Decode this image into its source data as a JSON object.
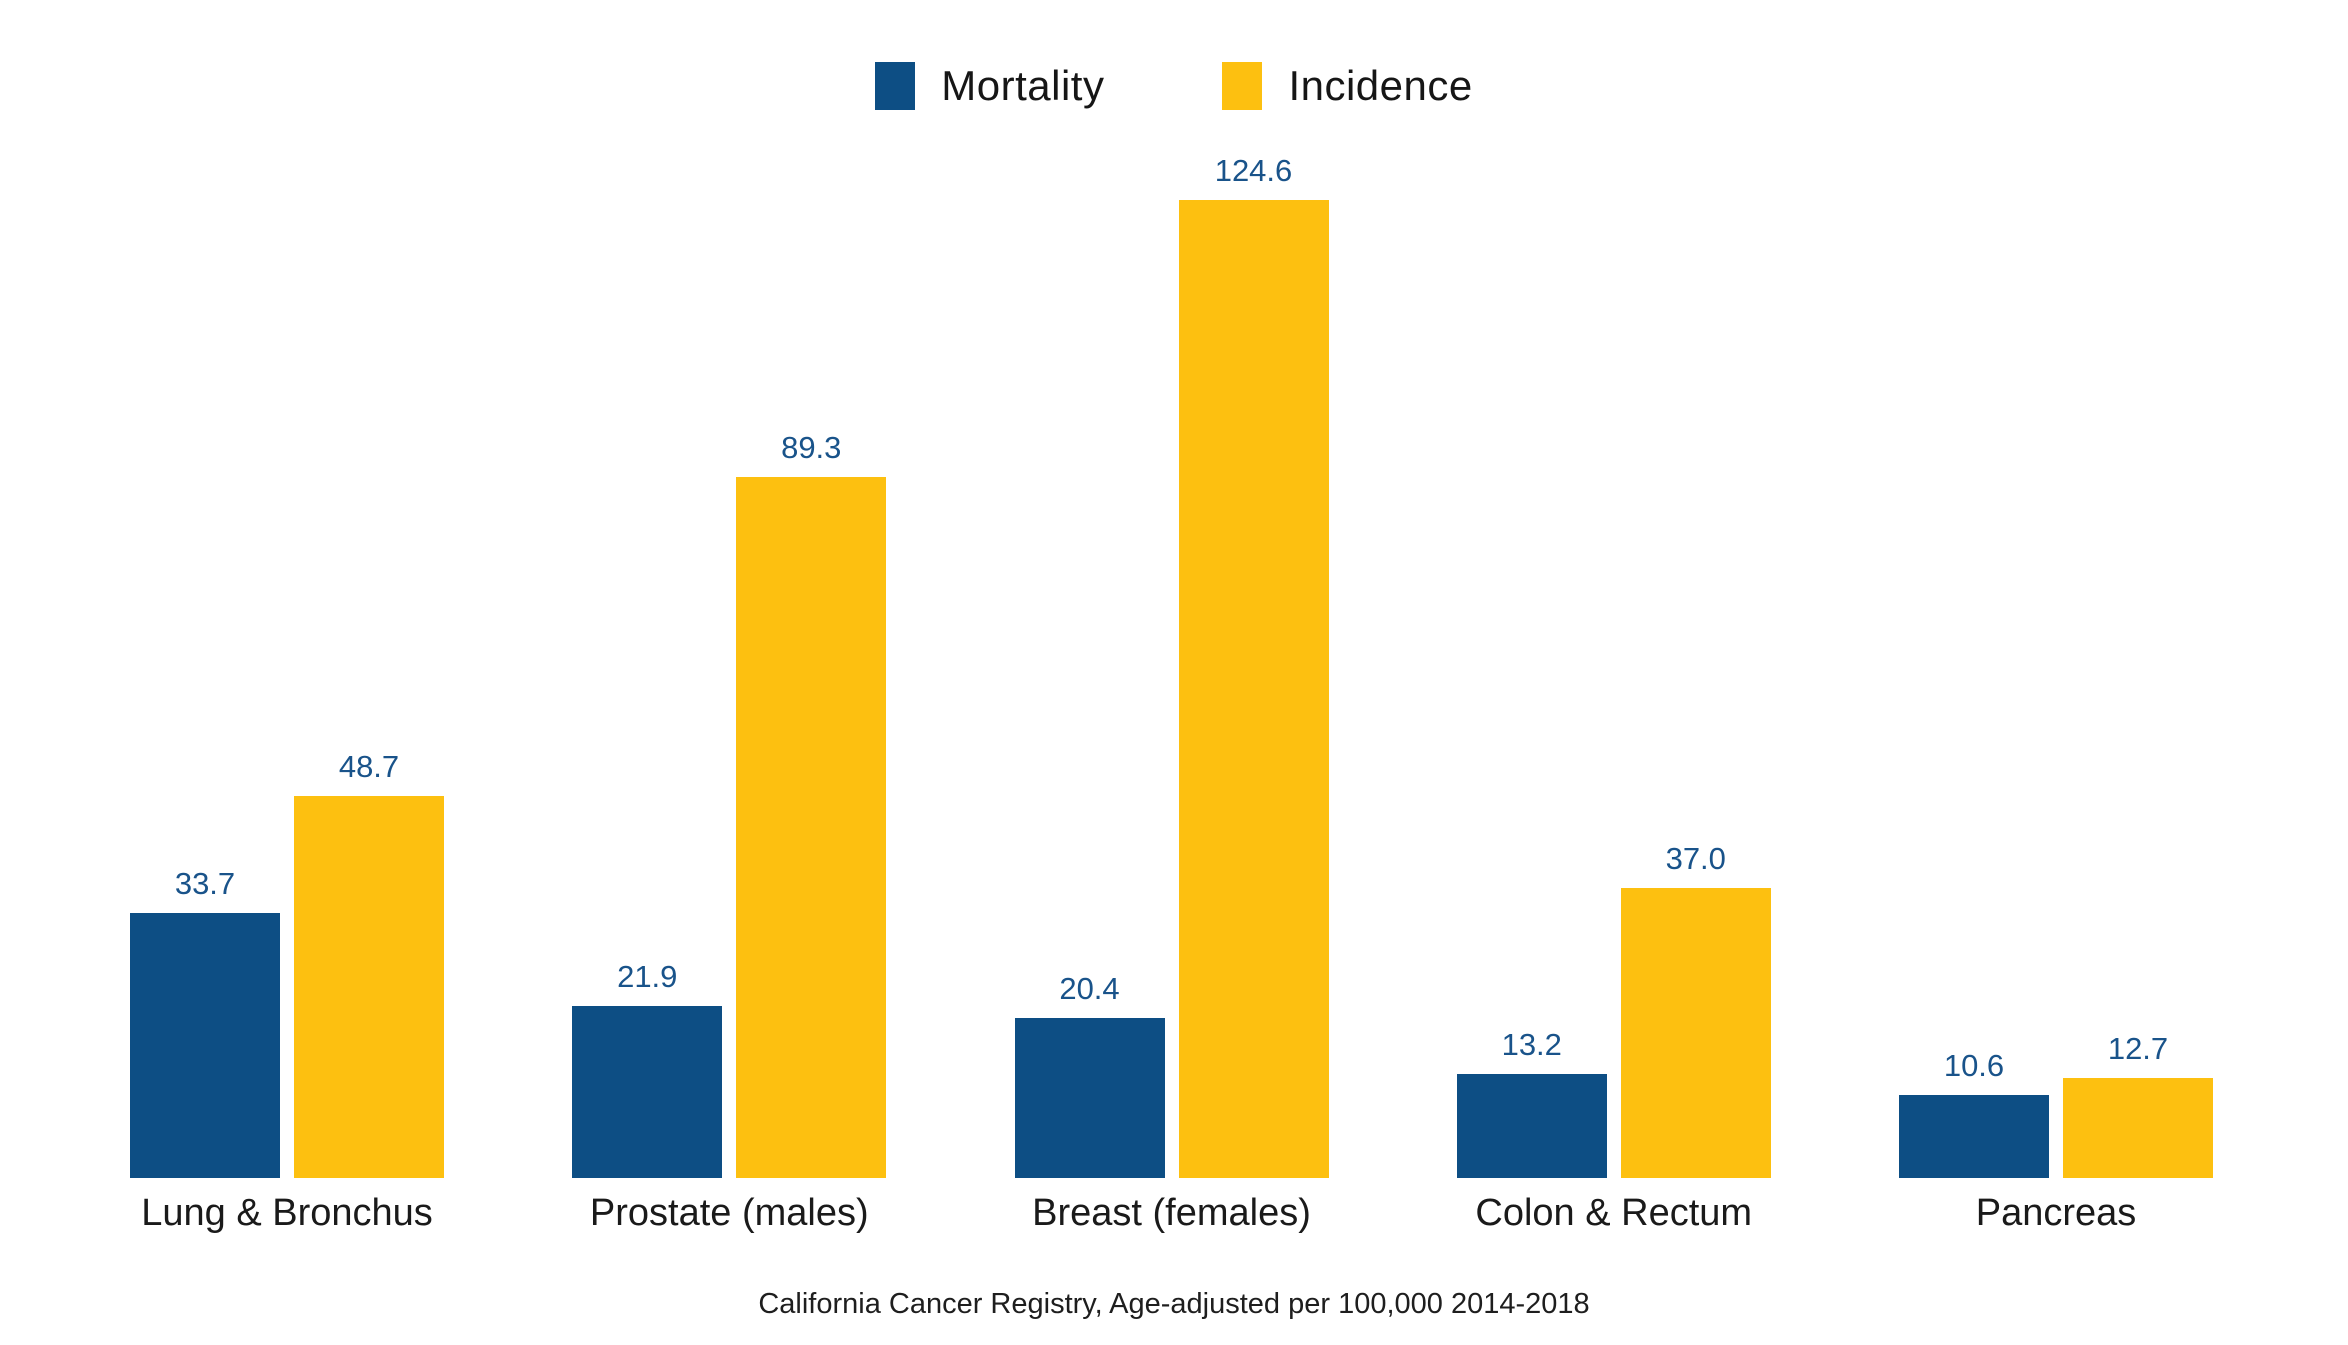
{
  "legend": {
    "items": [
      {
        "label": "Mortality",
        "color": "#0D4E84"
      },
      {
        "label": "Incidence",
        "color": "#FDC010"
      }
    ]
  },
  "caption": "California Cancer Registry, Age-adjusted per 100,000 2014-2018",
  "colors": {
    "mortality_bar": "#0D4E84",
    "incidence_bar": "#FDC010",
    "value_label": "#19538A",
    "text": "#1a1a1a",
    "background": "#ffffff"
  },
  "chart_data": {
    "type": "bar",
    "categories": [
      "Lung & Bronchus",
      "Prostate (males)",
      "Breast (females)",
      "Colon & Rectum",
      "Pancreas"
    ],
    "series": [
      {
        "name": "Mortality",
        "color": "#0D4E84",
        "values": [
          33.7,
          21.9,
          20.4,
          13.2,
          10.6
        ]
      },
      {
        "name": "Incidence",
        "color": "#FDC010",
        "values": [
          48.7,
          89.3,
          124.6,
          37.0,
          12.7
        ]
      }
    ],
    "value_labels": [
      "33.7",
      "21.9",
      "20.4",
      "13.2",
      "10.6",
      "48.7",
      "89.3",
      "124.6",
      "37.0",
      "12.7"
    ],
    "title": "",
    "xlabel": "",
    "ylabel": "",
    "ylim": [
      0,
      124.6
    ],
    "grid": false,
    "axis_lines": false,
    "legend_position": "top",
    "source_note": "California Cancer Registry, Age-adjusted per 100,000 2014-2018"
  }
}
